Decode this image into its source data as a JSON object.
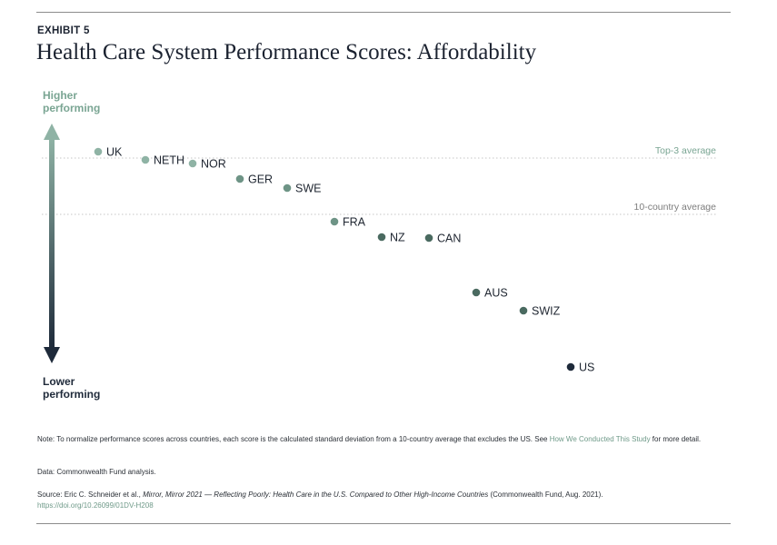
{
  "header": {
    "exhibit": "EXHIBIT 5",
    "title": "Health Care System Performance Scores: Affordability"
  },
  "axis": {
    "higher_line1": "Higher",
    "higher_line2": "performing",
    "lower_line1": "Lower",
    "lower_line2": "performing"
  },
  "colors": {
    "light_dot": "#8fb3a5",
    "mid_dot": "#6e9486",
    "dark_dot": "#4a6a60",
    "us_dot": "#1e2a3a",
    "reference_line": "#c6c6c6",
    "reference_text": "#7aa593",
    "arrow_top": "#8fb3a5",
    "arrow_bottom": "#1e2a3a"
  },
  "chart_data": {
    "type": "scatter",
    "title": "Health Care System Performance Scores: Affordability",
    "y_direction": "higher is better",
    "reference_lines": [
      {
        "label": "Top-3 average",
        "y": 0.62
      },
      {
        "label": "10-country average",
        "y": 0.0
      }
    ],
    "points": [
      {
        "label": "UK",
        "y": 0.69,
        "shade": "light"
      },
      {
        "label": "NETH",
        "y": 0.6,
        "shade": "light"
      },
      {
        "label": "NOR",
        "y": 0.56,
        "shade": "light"
      },
      {
        "label": "GER",
        "y": 0.39,
        "shade": "mid"
      },
      {
        "label": "SWE",
        "y": 0.29,
        "shade": "mid"
      },
      {
        "label": "FRA",
        "y": -0.08,
        "shade": "mid"
      },
      {
        "label": "NZ",
        "y": -0.25,
        "shade": "dark"
      },
      {
        "label": "CAN",
        "y": -0.26,
        "shade": "dark"
      },
      {
        "label": "AUS",
        "y": -0.86,
        "shade": "dark"
      },
      {
        "label": "SWIZ",
        "y": -1.06,
        "shade": "dark"
      },
      {
        "label": "US",
        "y": -1.68,
        "shade": "us"
      }
    ]
  },
  "footer": {
    "note_text": "Note: To normalize performance scores across countries, each score is the calculated standard deviation from a 10-country average that excludes the US. See ",
    "note_link": "How We Conducted This Study",
    "note_end": " for more detail.",
    "data_text": "Data: Commonwealth Fund analysis.",
    "source_prefix": "Source: Eric C. Schneider et al., ",
    "source_italic": "Mirror, Mirror 2021 — Reflecting Poorly: Health Care in the U.S. Compared to Other High-Income Countries",
    "source_suffix": " (Commonwealth Fund, Aug. 2021).",
    "doi": "https://doi.org/10.26099/01DV-H208"
  }
}
